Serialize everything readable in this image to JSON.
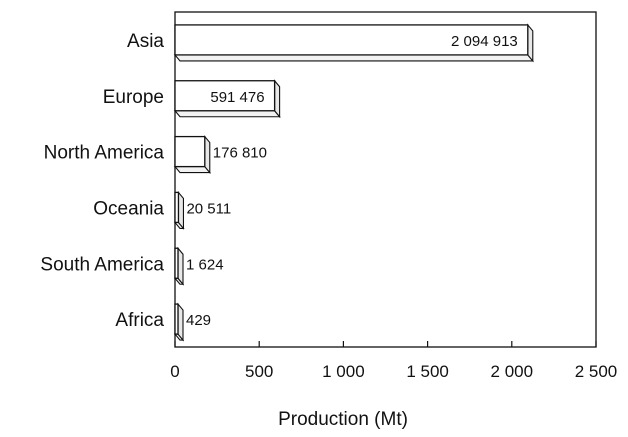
{
  "chart_data": {
    "type": "bar",
    "orientation": "horizontal",
    "style": "3d",
    "categories": [
      "Asia",
      "Europe",
      "North America",
      "Oceania",
      "South America",
      "Africa"
    ],
    "values": [
      2094.913,
      591.476,
      176.81,
      20.511,
      1.624,
      0.429
    ],
    "value_labels": [
      "2 094 913",
      "591 476",
      "176 810",
      "20 511",
      "1 624",
      "429"
    ],
    "value_label_position": [
      "inside",
      "inside",
      "outside",
      "outside",
      "outside",
      "outside"
    ],
    "xlabel": "Production (Mt)",
    "ylabel": "",
    "xlim": [
      0,
      2500
    ],
    "x_ticks": [
      0,
      500,
      1000,
      1500,
      2000,
      2500
    ],
    "x_tick_labels": [
      "0",
      "500",
      "1 000",
      "1 500",
      "2 000",
      "2 500"
    ],
    "grid": false,
    "colors": {
      "bar_face": "#ffffff",
      "bar_stroke": "#111111",
      "shadow": "#999999"
    }
  }
}
